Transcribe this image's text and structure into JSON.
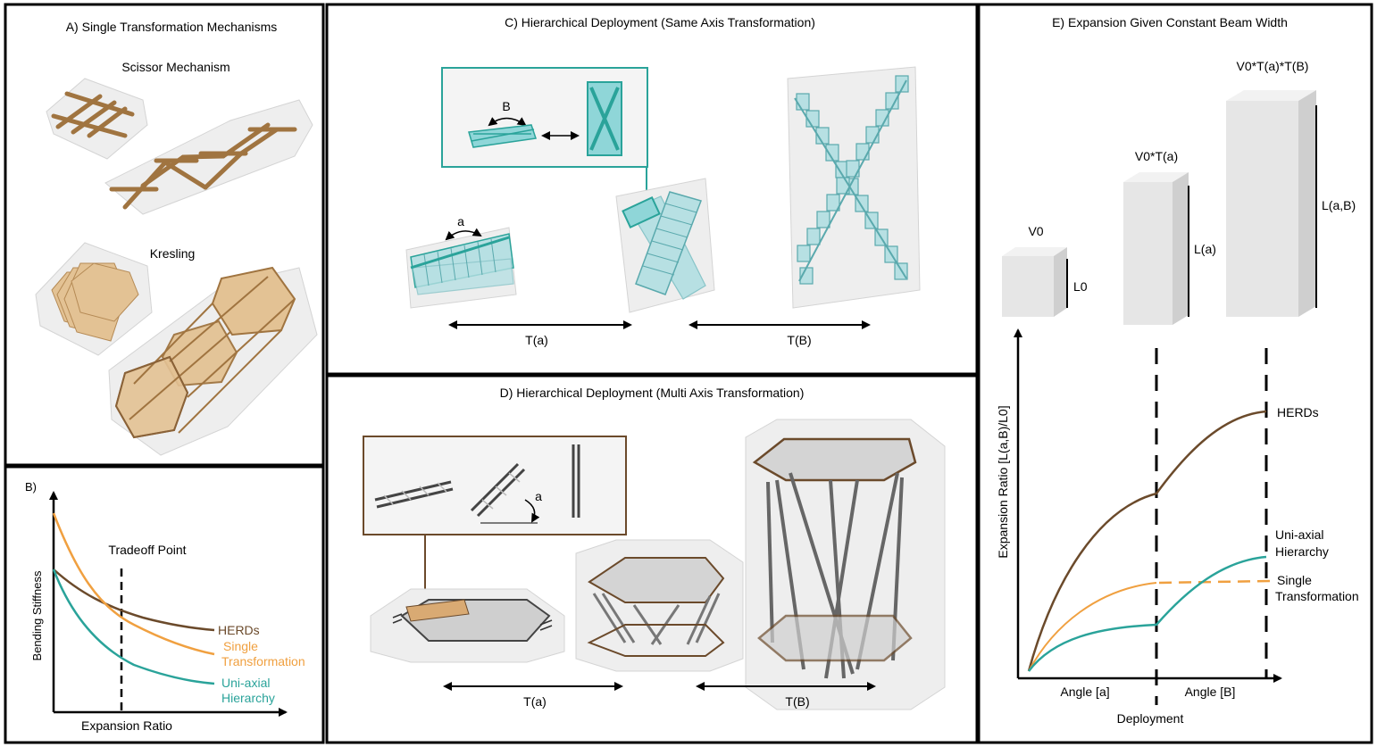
{
  "panel_a": {
    "title": "A)   Single Transformation Mechanisms",
    "scissor_label": "Scissor Mechanism",
    "kresling_label": "Kresling"
  },
  "panel_b": {
    "label": "B)",
    "tradeoff_label": "Tradeoff Point",
    "y_axis": "Bending Stiffness",
    "x_axis": "Expansion Ratio",
    "legend_herds": "HERDs",
    "legend_single_1": "Single",
    "legend_single_2": "Transformation",
    "legend_uni_1": "Uni-axial",
    "legend_uni_2": "Hierarchy"
  },
  "panel_c": {
    "title": "C) Hierarchical Deployment (Same Axis Transformation)",
    "angle_b": "B",
    "angle_a": "a",
    "arrow_1": "T(a)",
    "arrow_2": "T(B)"
  },
  "panel_d": {
    "title": "D) Hierarchical Deployment (Multi Axis Transformation)",
    "angle_a": "a",
    "arrow_1": "T(a)",
    "arrow_2": "T(B)"
  },
  "panel_e": {
    "title": "E) Expansion Given Constant Beam Width",
    "v0": "V0",
    "l0": "L0",
    "v0ta": "V0*T(a)",
    "la": "L(a)",
    "v0tatb": "V0*T(a)*T(B)",
    "lab": "L(a,B)",
    "y_axis": "Expansion Ratio [L(a,B)/L0]",
    "x_axis": "Deployment",
    "x_seg_1": "Angle [a]",
    "x_seg_2": "Angle [B]",
    "legend_herds": "HERDs",
    "legend_uni_1": "Uni-axial",
    "legend_uni_2": "Hierarchy",
    "legend_single_1": "Single",
    "legend_single_2": "Transformation"
  },
  "colors": {
    "herds": "#6b4a2b",
    "single": "#f0a040",
    "uniaxial": "#2aa39a",
    "teal_box": "#2aa39a",
    "brown_box": "#6b4a2b",
    "wood": "#a07440",
    "kresling_fill": "#e3c294",
    "cyan_fill": "#b7e0e3"
  }
}
